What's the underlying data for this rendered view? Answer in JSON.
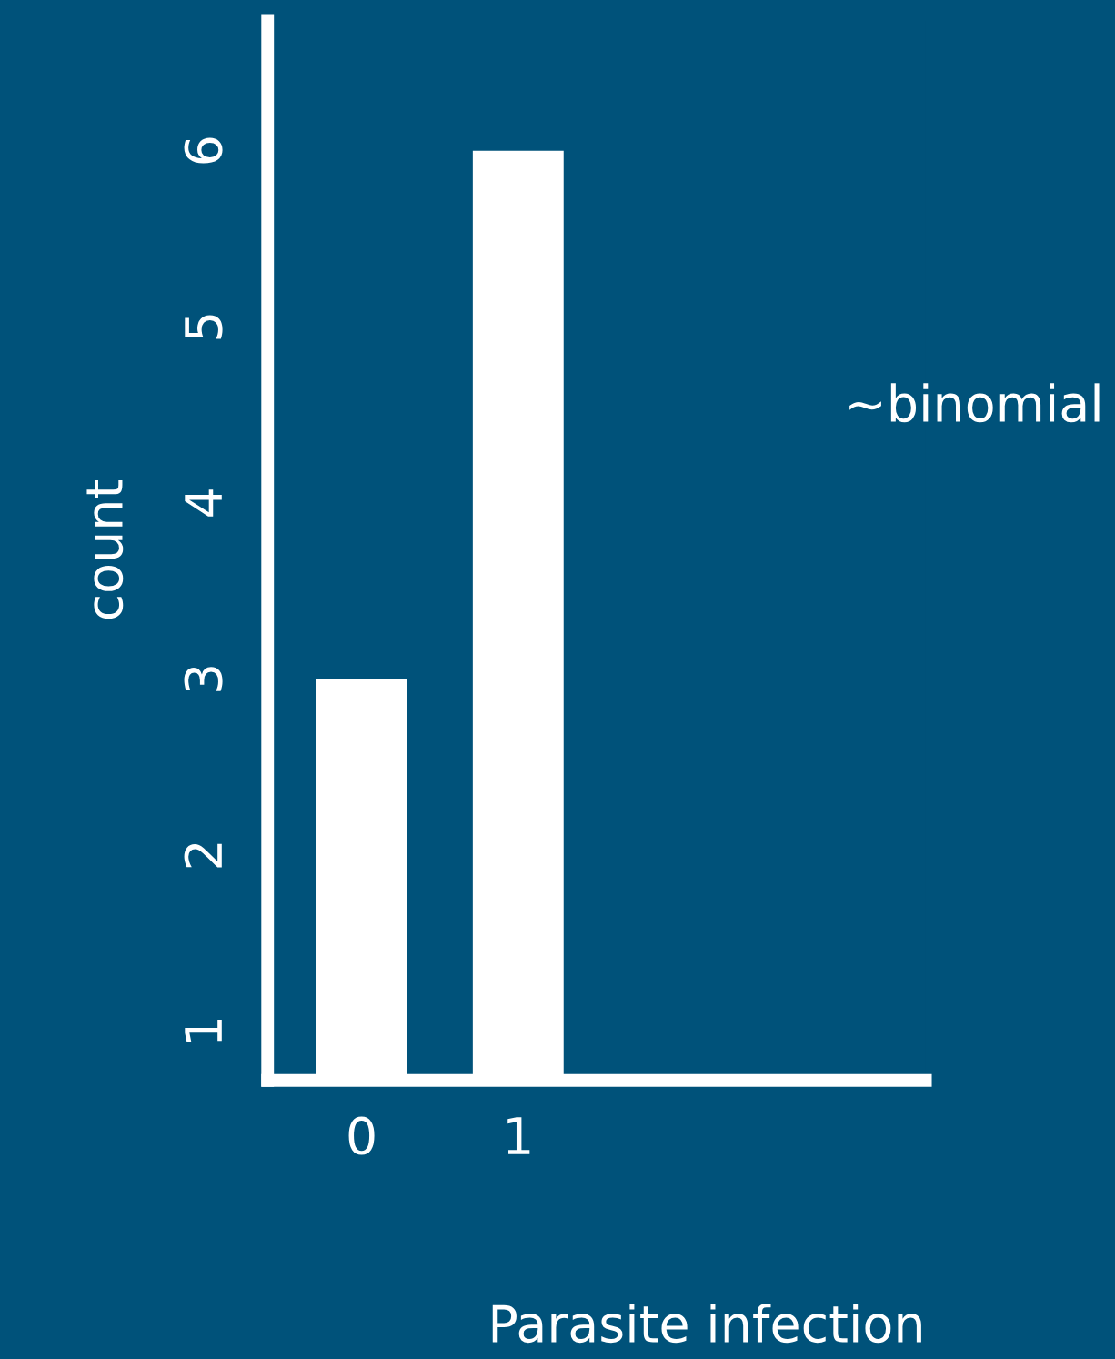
{
  "chart_data": {
    "type": "bar",
    "x": [
      0,
      1
    ],
    "values": [
      3,
      6
    ],
    "color": "#ffffff",
    "xlim": [
      -0.6,
      3.6
    ],
    "xticks": [
      0,
      1
    ],
    "ylim": [
      0.72,
      6.74
    ],
    "yticks": [
      1,
      2,
      3,
      4,
      5,
      6
    ],
    "xlabel": "Parasite infection",
    "ylabel": "count",
    "annotations": [
      "~binomial"
    ],
    "grid": false,
    "legend": false
  }
}
